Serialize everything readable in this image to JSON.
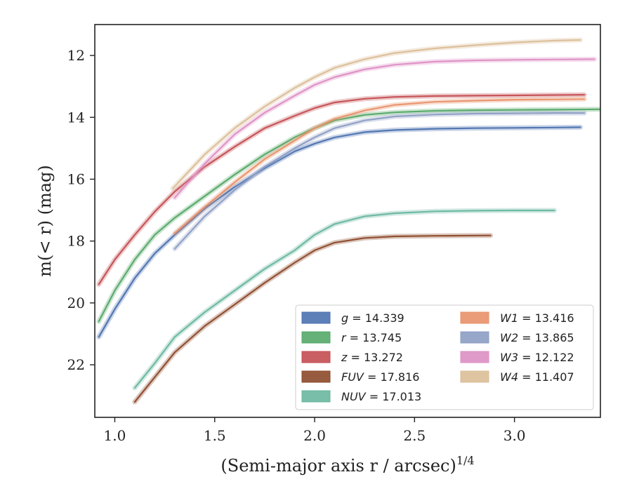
{
  "chart_data": {
    "type": "line",
    "xlabel": "(Semi-major axis r / arcsec)",
    "xlabel_sup": "1/4",
    "ylabel": "m(< r) (mag)",
    "xlim": [
      0.9,
      3.43
    ],
    "ylim": [
      23.7,
      11.0
    ],
    "y_inverted": true,
    "grid": false,
    "legend_position": "bottom-right",
    "xticks": [
      1.0,
      1.5,
      2.0,
      2.5,
      3.0
    ],
    "xtick_labels": [
      "1.0",
      "1.5",
      "2.0",
      "2.5",
      "3.0"
    ],
    "yticks": [
      12,
      14,
      16,
      18,
      20,
      22
    ],
    "ytick_labels": [
      "12",
      "14",
      "16",
      "18",
      "20",
      "22"
    ],
    "series": [
      {
        "name": "g",
        "value": "14.339",
        "color": "#4c72b0",
        "x": [
          0.92,
          1.0,
          1.1,
          1.2,
          1.3,
          1.45,
          1.6,
          1.75,
          1.9,
          2.0,
          2.1,
          2.25,
          2.4,
          2.6,
          2.8,
          3.0,
          3.2,
          3.33
        ],
        "y": [
          21.1,
          20.2,
          19.2,
          18.4,
          17.8,
          16.95,
          16.25,
          15.65,
          15.1,
          14.85,
          14.65,
          14.48,
          14.41,
          14.37,
          14.35,
          14.34,
          14.33,
          14.32
        ]
      },
      {
        "name": "r",
        "value": "13.745",
        "color": "#55a868",
        "x": [
          0.92,
          1.0,
          1.1,
          1.2,
          1.3,
          1.45,
          1.6,
          1.75,
          1.9,
          2.0,
          2.1,
          2.25,
          2.4,
          2.6,
          2.8,
          3.0,
          3.2,
          3.43
        ],
        "y": [
          20.6,
          19.6,
          18.6,
          17.8,
          17.25,
          16.55,
          15.85,
          15.2,
          14.65,
          14.35,
          14.1,
          13.92,
          13.84,
          13.79,
          13.77,
          13.76,
          13.75,
          13.74
        ]
      },
      {
        "name": "z",
        "value": "13.272",
        "color": "#c44e52",
        "x": [
          0.92,
          1.0,
          1.1,
          1.2,
          1.3,
          1.45,
          1.6,
          1.75,
          1.9,
          2.0,
          2.1,
          2.25,
          2.4,
          2.6,
          2.8,
          3.0,
          3.2,
          3.35
        ],
        "y": [
          19.4,
          18.6,
          17.8,
          17.05,
          16.4,
          15.6,
          14.95,
          14.35,
          13.95,
          13.7,
          13.52,
          13.4,
          13.34,
          13.31,
          13.3,
          13.29,
          13.28,
          13.27
        ]
      },
      {
        "name": "FUV",
        "value": "17.816",
        "color": "#8c4a2a",
        "x": [
          1.1,
          1.2,
          1.3,
          1.45,
          1.6,
          1.75,
          1.9,
          2.0,
          2.1,
          2.25,
          2.4,
          2.6,
          2.88
        ],
        "y": [
          23.2,
          22.4,
          21.6,
          20.75,
          20.05,
          19.35,
          18.7,
          18.3,
          18.05,
          17.9,
          17.85,
          17.83,
          17.82
        ]
      },
      {
        "name": "NUV",
        "value": "17.013",
        "color": "#69b7a0",
        "x": [
          1.1,
          1.2,
          1.3,
          1.45,
          1.6,
          1.75,
          1.9,
          2.0,
          2.1,
          2.25,
          2.4,
          2.6,
          2.8,
          3.0,
          3.2
        ],
        "y": [
          22.75,
          21.95,
          21.1,
          20.3,
          19.6,
          18.9,
          18.3,
          17.8,
          17.45,
          17.2,
          17.1,
          17.04,
          17.02,
          17.01,
          17.01
        ]
      },
      {
        "name": "W1",
        "value": "13.416",
        "color": "#e8916a",
        "x": [
          1.3,
          1.45,
          1.6,
          1.75,
          1.9,
          2.0,
          2.1,
          2.25,
          2.4,
          2.6,
          2.8,
          3.0,
          3.2,
          3.35
        ],
        "y": [
          17.75,
          16.9,
          16.1,
          15.35,
          14.75,
          14.35,
          14.05,
          13.78,
          13.6,
          13.5,
          13.46,
          13.43,
          13.42,
          13.41
        ]
      },
      {
        "name": "W2",
        "value": "13.865",
        "color": "#8c9dc4",
        "x": [
          1.3,
          1.45,
          1.6,
          1.75,
          1.9,
          2.0,
          2.1,
          2.25,
          2.4,
          2.6,
          2.8,
          3.0,
          3.2,
          3.35
        ],
        "y": [
          18.25,
          17.2,
          16.35,
          15.6,
          15.0,
          14.65,
          14.35,
          14.1,
          13.97,
          13.91,
          13.88,
          13.87,
          13.86,
          13.86
        ]
      },
      {
        "name": "W3",
        "value": "12.122",
        "color": "#dd8fc4",
        "x": [
          1.3,
          1.45,
          1.6,
          1.75,
          1.9,
          2.0,
          2.1,
          2.25,
          2.4,
          2.6,
          2.8,
          3.0,
          3.2,
          3.4
        ],
        "y": [
          16.6,
          15.5,
          14.55,
          13.85,
          13.3,
          12.95,
          12.7,
          12.45,
          12.3,
          12.2,
          12.16,
          12.14,
          12.13,
          12.12
        ]
      },
      {
        "name": "W4",
        "value": "11.407",
        "color": "#dbbe97",
        "x": [
          1.29,
          1.45,
          1.6,
          1.75,
          1.9,
          2.0,
          2.1,
          2.25,
          2.4,
          2.6,
          2.8,
          3.0,
          3.2,
          3.33
        ],
        "y": [
          16.3,
          15.2,
          14.35,
          13.65,
          13.05,
          12.7,
          12.4,
          12.12,
          11.92,
          11.77,
          11.67,
          11.58,
          11.52,
          11.5
        ]
      }
    ]
  }
}
